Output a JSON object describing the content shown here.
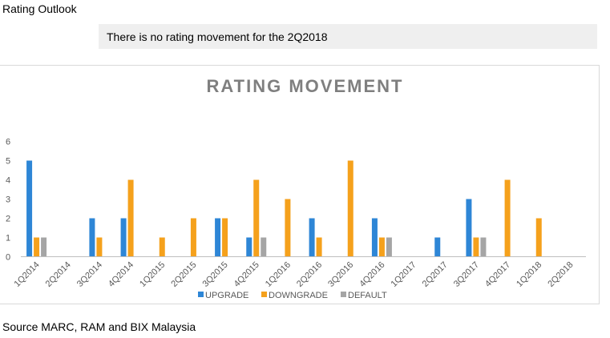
{
  "page": {
    "heading": "Rating Outlook",
    "note": "There is no rating movement for the 2Q2018",
    "source": "Source MARC, RAM and BIX Malaysia"
  },
  "colors": {
    "upgrade": "#2e86d6",
    "downgrade": "#f5a11c",
    "default": "#a5a5a5",
    "axis_text": "#595959",
    "title": "#7f7f7f"
  },
  "chart_data": {
    "type": "bar",
    "title": "RATING MOVEMENT",
    "xlabel": "",
    "ylabel": "",
    "ylim": [
      0,
      6
    ],
    "yticks": [
      "0",
      "1",
      "2",
      "3",
      "4",
      "5",
      "6"
    ],
    "grid": false,
    "legend": "bottom",
    "categories": [
      "1Q2014",
      "2Q2014",
      "3Q2014",
      "4Q2014",
      "1Q2015",
      "2Q2015",
      "3Q2015",
      "4Q2015",
      "1Q2016",
      "2Q2016",
      "3Q2016",
      "4Q2016",
      "1Q2017",
      "2Q2017",
      "3Q2017",
      "4Q2017",
      "1Q2018",
      "2Q2018"
    ],
    "series": [
      {
        "name": "UPGRADE",
        "color": "#2e86d6",
        "values": [
          5,
          0,
          2,
          2,
          0,
          0,
          2,
          1,
          0,
          2,
          0,
          2,
          0,
          1,
          3,
          0,
          0,
          0
        ]
      },
      {
        "name": "DOWNGRADE",
        "color": "#f5a11c",
        "values": [
          1,
          0,
          1,
          4,
          1,
          2,
          2,
          4,
          3,
          1,
          5,
          1,
          0,
          0,
          1,
          4,
          2,
          0
        ]
      },
      {
        "name": "DEFAULT",
        "color": "#a5a5a5",
        "values": [
          1,
          0,
          0,
          0,
          0,
          0,
          0,
          1,
          0,
          0,
          0,
          1,
          0,
          0,
          1,
          0,
          0,
          0
        ]
      }
    ]
  }
}
